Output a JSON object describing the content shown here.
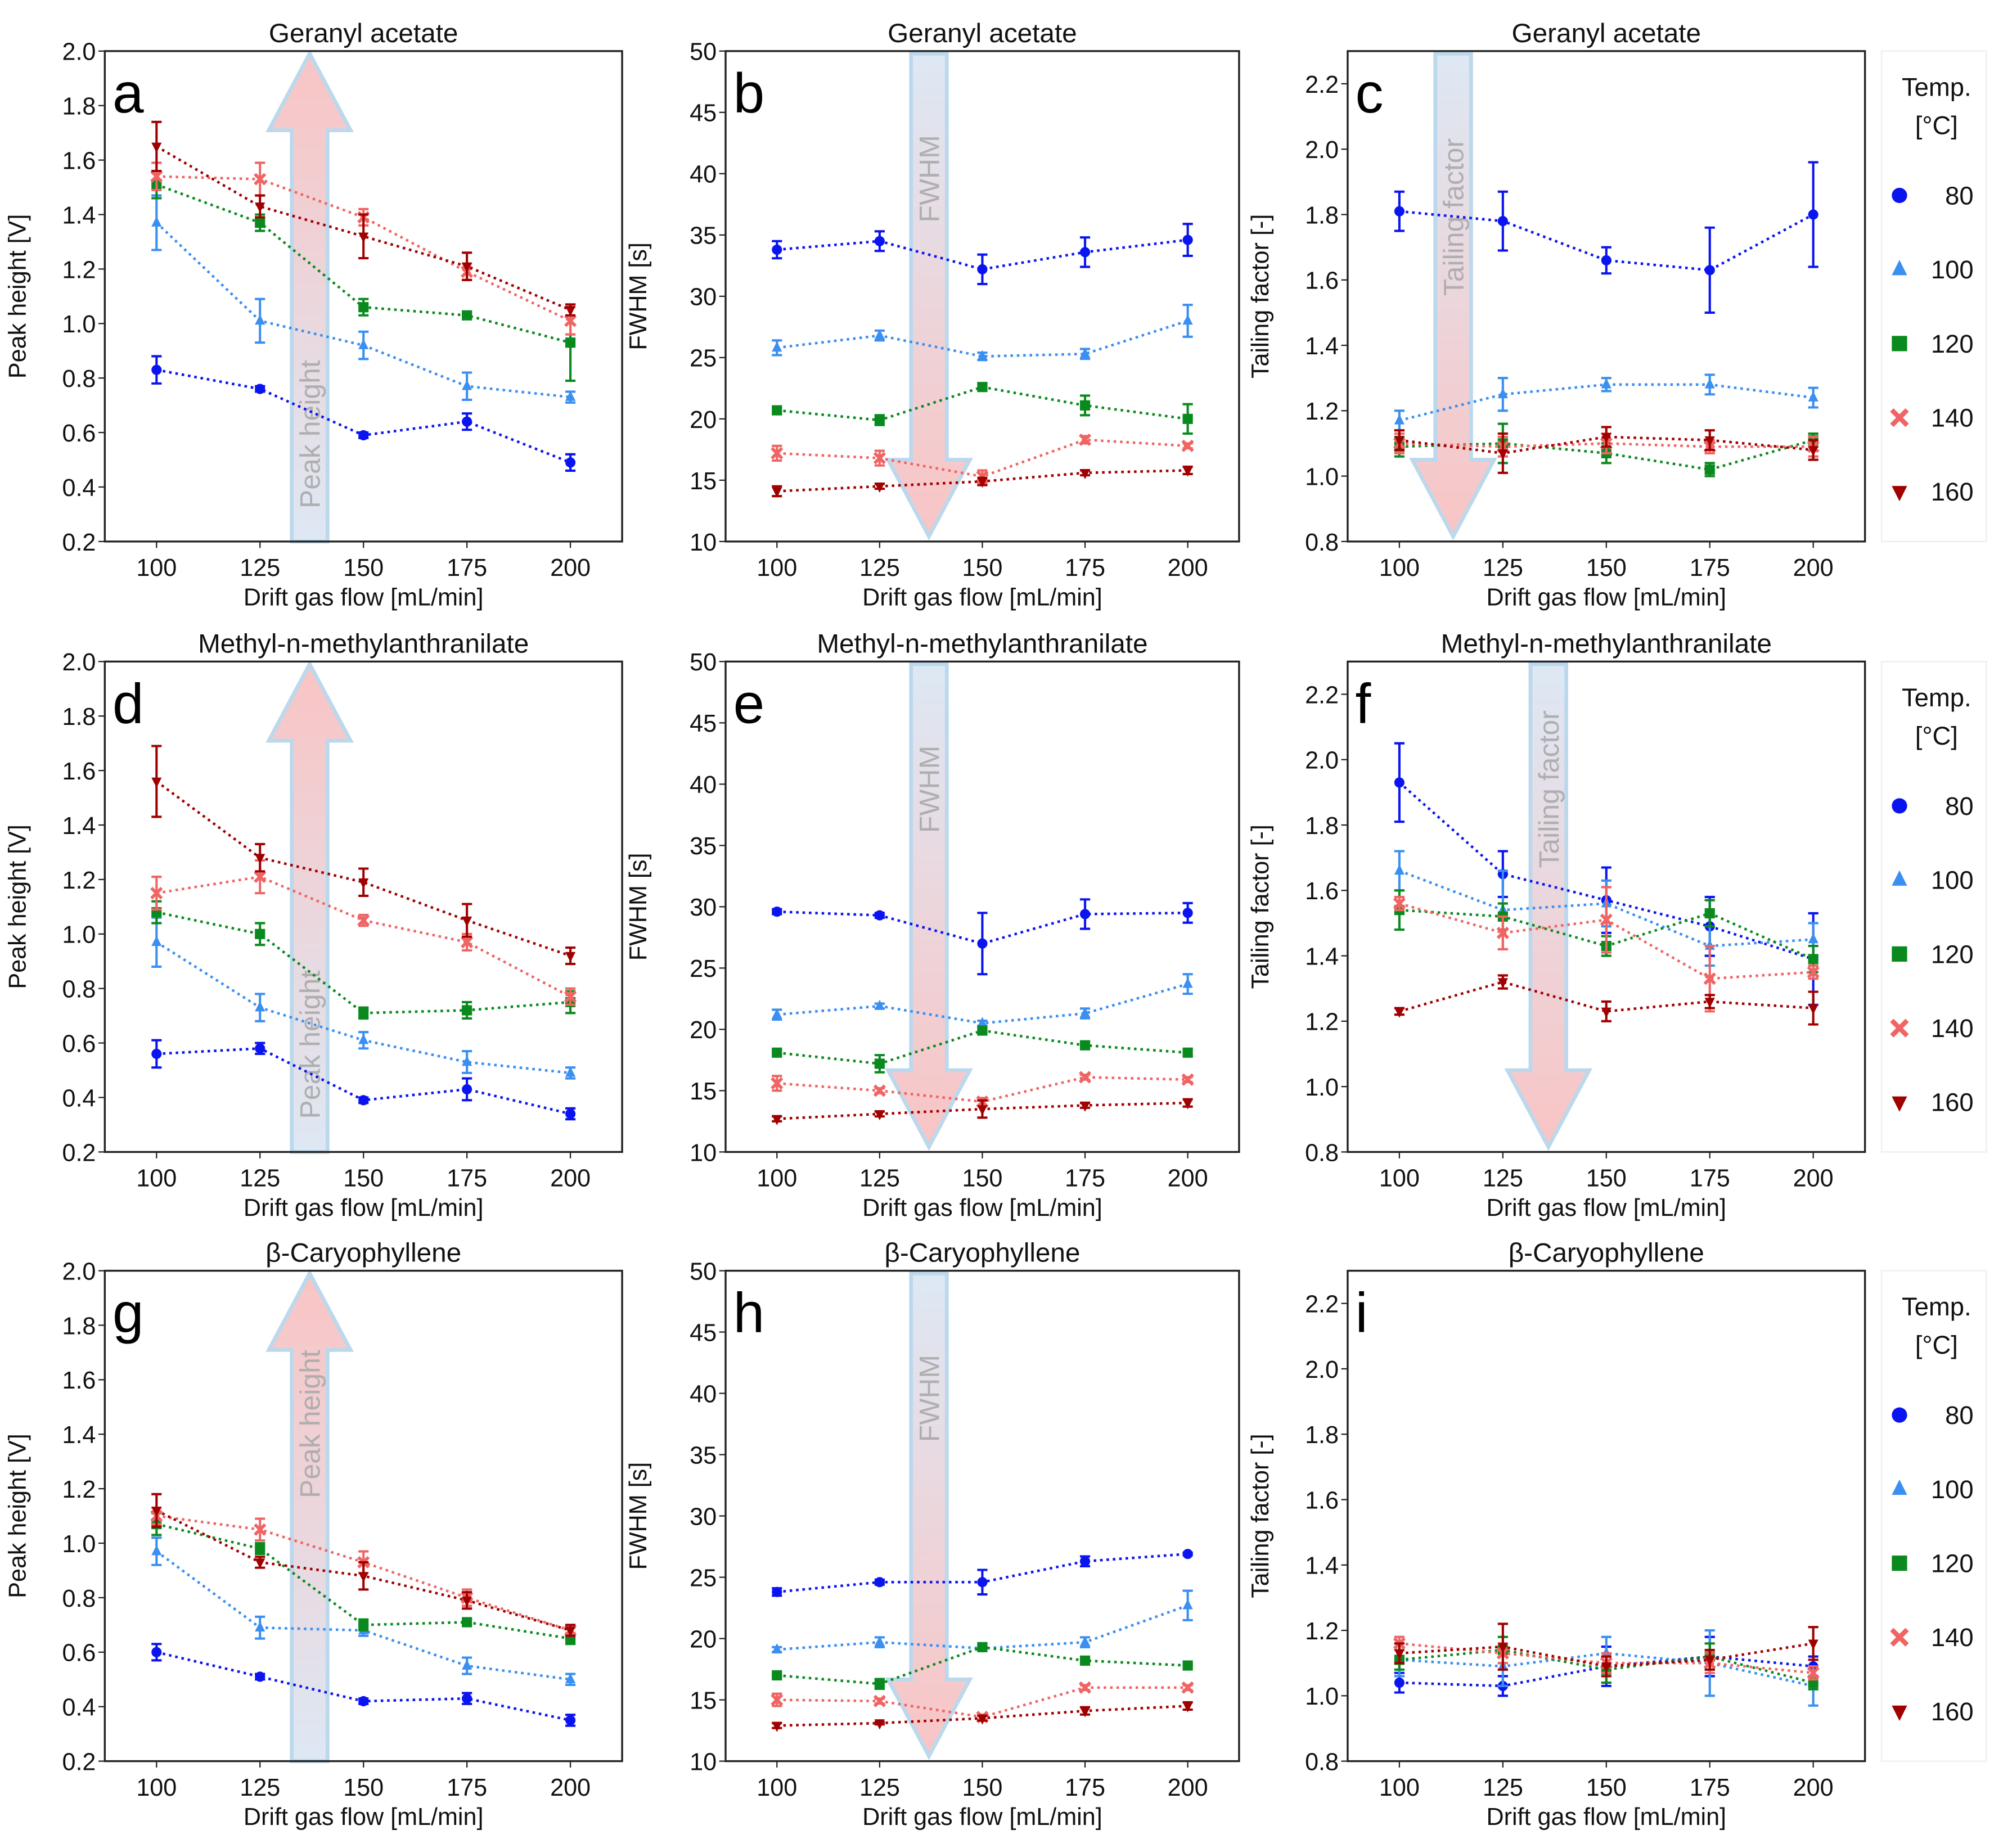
{
  "legend": {
    "title_line1": "Temp.",
    "title_line2": "[°C]",
    "entries": [
      {
        "label": "80",
        "color": "#0a14f0",
        "marker": "circle"
      },
      {
        "label": "100",
        "color": "#3a8ff0",
        "marker": "triangle-up"
      },
      {
        "label": "120",
        "color": "#0a8a1e",
        "marker": "square"
      },
      {
        "label": "140",
        "color": "#f06464",
        "marker": "x"
      },
      {
        "label": "160",
        "color": "#a00000",
        "marker": "triangle-down"
      }
    ]
  },
  "chart_data": [
    {
      "type": "line",
      "panel": "a",
      "title": "Geranyl acetate",
      "xlabel": "Drift gas flow [mL/min]",
      "ylabel": "Peak height [V]",
      "annotation": "Peak height",
      "arrow": "up",
      "x": [
        100,
        125,
        150,
        175,
        200
      ],
      "xlim": [
        87.5,
        212.5
      ],
      "ylim": [
        0.2,
        2.0
      ],
      "yticks": [
        0.2,
        0.4,
        0.6,
        0.8,
        1.0,
        1.2,
        1.4,
        1.6,
        1.8,
        2.0
      ],
      "tick_decimals": 1,
      "series": [
        {
          "name": "80",
          "values": [
            0.83,
            0.76,
            0.59,
            0.64,
            0.49
          ],
          "errors": [
            0.05,
            0.01,
            0.01,
            0.03,
            0.03
          ]
        },
        {
          "name": "100",
          "values": [
            1.37,
            1.01,
            0.92,
            0.77,
            0.73
          ],
          "errors": [
            0.1,
            0.08,
            0.05,
            0.05,
            0.02
          ]
        },
        {
          "name": "120",
          "values": [
            1.51,
            1.37,
            1.06,
            1.03,
            0.93
          ],
          "errors": [
            0.05,
            0.03,
            0.03,
            0.01,
            0.14
          ]
        },
        {
          "name": "140",
          "values": [
            1.54,
            1.53,
            1.39,
            1.19,
            1.01
          ],
          "errors": [
            0.05,
            0.06,
            0.03,
            0.03,
            0.05
          ]
        },
        {
          "name": "160",
          "values": [
            1.65,
            1.43,
            1.32,
            1.21,
            1.05
          ],
          "errors": [
            0.09,
            0.04,
            0.08,
            0.05,
            0.02
          ]
        }
      ]
    },
    {
      "type": "line",
      "panel": "b",
      "title": "Geranyl acetate",
      "xlabel": "Drift gas flow [mL/min]",
      "ylabel": "FWHM [s]",
      "annotation": "FWHM",
      "arrow": "down",
      "x": [
        100,
        125,
        150,
        175,
        200
      ],
      "xlim": [
        87.5,
        212.5
      ],
      "ylim": [
        10,
        50
      ],
      "yticks": [
        10,
        15,
        20,
        25,
        30,
        35,
        40,
        45,
        50
      ],
      "tick_decimals": 0,
      "series": [
        {
          "name": "80",
          "values": [
            33.8,
            34.5,
            32.2,
            33.6,
            34.6
          ],
          "errors": [
            0.7,
            0.8,
            1.2,
            1.2,
            1.3
          ]
        },
        {
          "name": "100",
          "values": [
            25.8,
            26.8,
            25.1,
            25.3,
            28.0
          ],
          "errors": [
            0.6,
            0.4,
            0.3,
            0.4,
            1.3
          ]
        },
        {
          "name": "120",
          "values": [
            20.7,
            19.9,
            22.6,
            21.1,
            20.0
          ],
          "errors": [
            0.3,
            0.4,
            0.3,
            0.8,
            1.2
          ]
        },
        {
          "name": "140",
          "values": [
            17.2,
            16.8,
            15.3,
            18.3,
            17.8
          ],
          "errors": [
            0.6,
            0.6,
            0.5,
            0.3,
            0.2
          ]
        },
        {
          "name": "160",
          "values": [
            14.1,
            14.5,
            14.9,
            15.6,
            15.8
          ],
          "errors": [
            0.4,
            0.2,
            0.3,
            0.2,
            0.3
          ]
        }
      ]
    },
    {
      "type": "line",
      "panel": "c",
      "title": "Geranyl acetate",
      "xlabel": "Drift gas flow [mL/min]",
      "ylabel": "Tailing factor  [-]",
      "annotation": "Tailing factor",
      "arrow": "down",
      "x": [
        100,
        125,
        150,
        175,
        200
      ],
      "xlim": [
        87.5,
        212.5
      ],
      "ylim": [
        0.8,
        2.3
      ],
      "yticks": [
        0.8,
        1.0,
        1.2,
        1.4,
        1.6,
        1.8,
        2.0,
        2.2
      ],
      "tick_decimals": 1,
      "series": [
        {
          "name": "80",
          "values": [
            1.81,
            1.78,
            1.66,
            1.63,
            1.8
          ],
          "errors": [
            0.06,
            0.09,
            0.04,
            0.13,
            0.16
          ]
        },
        {
          "name": "100",
          "values": [
            1.17,
            1.25,
            1.28,
            1.28,
            1.24
          ],
          "errors": [
            0.03,
            0.05,
            0.02,
            0.03,
            0.03
          ]
        },
        {
          "name": "120",
          "values": [
            1.09,
            1.1,
            1.07,
            1.02,
            1.11
          ],
          "errors": [
            0.03,
            0.06,
            0.03,
            0.02,
            0.02
          ]
        },
        {
          "name": "140",
          "values": [
            1.1,
            1.09,
            1.1,
            1.09,
            1.09
          ],
          "errors": [
            0.03,
            0.03,
            0.03,
            0.02,
            0.03
          ]
        },
        {
          "name": "160",
          "values": [
            1.11,
            1.07,
            1.12,
            1.11,
            1.08
          ],
          "errors": [
            0.03,
            0.06,
            0.03,
            0.03,
            0.03
          ]
        }
      ]
    },
    {
      "type": "line",
      "panel": "d",
      "title": "Methyl-n-methylanthranilate",
      "xlabel": "Drift gas flow [mL/min]",
      "ylabel": "Peak height [V]",
      "annotation": "Peak height",
      "arrow": "up",
      "x": [
        100,
        125,
        150,
        175,
        200
      ],
      "xlim": [
        87.5,
        212.5
      ],
      "ylim": [
        0.2,
        2.0
      ],
      "yticks": [
        0.2,
        0.4,
        0.6,
        0.8,
        1.0,
        1.2,
        1.4,
        1.6,
        1.8,
        2.0
      ],
      "tick_decimals": 1,
      "series": [
        {
          "name": "80",
          "values": [
            0.56,
            0.58,
            0.39,
            0.43,
            0.34
          ],
          "errors": [
            0.05,
            0.02,
            0.01,
            0.04,
            0.02
          ]
        },
        {
          "name": "100",
          "values": [
            0.97,
            0.73,
            0.61,
            0.53,
            0.49
          ],
          "errors": [
            0.09,
            0.05,
            0.03,
            0.04,
            0.02
          ]
        },
        {
          "name": "120",
          "values": [
            1.08,
            1.0,
            0.71,
            0.72,
            0.75
          ],
          "errors": [
            0.04,
            0.04,
            0.02,
            0.03,
            0.04
          ]
        },
        {
          "name": "140",
          "values": [
            1.15,
            1.21,
            1.05,
            0.97,
            0.77
          ],
          "errors": [
            0.06,
            0.06,
            0.02,
            0.03,
            0.03
          ]
        },
        {
          "name": "160",
          "values": [
            1.56,
            1.28,
            1.19,
            1.05,
            0.92
          ],
          "errors": [
            0.13,
            0.05,
            0.05,
            0.06,
            0.03
          ]
        }
      ]
    },
    {
      "type": "line",
      "panel": "e",
      "title": "Methyl-n-methylanthranilate",
      "xlabel": "Drift gas flow [mL/min]",
      "ylabel": "FWHM [s]",
      "annotation": "FWHM",
      "arrow": "down",
      "x": [
        100,
        125,
        150,
        175,
        200
      ],
      "xlim": [
        87.5,
        212.5
      ],
      "ylim": [
        10,
        50
      ],
      "yticks": [
        10,
        15,
        20,
        25,
        30,
        35,
        40,
        45,
        50
      ],
      "tick_decimals": 0,
      "series": [
        {
          "name": "80",
          "values": [
            29.6,
            29.3,
            27.0,
            29.4,
            29.5
          ],
          "errors": [
            0.2,
            0.2,
            2.5,
            1.2,
            0.8
          ]
        },
        {
          "name": "100",
          "values": [
            21.2,
            21.9,
            20.5,
            21.3,
            23.7
          ],
          "errors": [
            0.4,
            0.2,
            0.2,
            0.4,
            0.8
          ]
        },
        {
          "name": "120",
          "values": [
            18.1,
            17.2,
            19.9,
            18.7,
            18.1
          ],
          "errors": [
            0.2,
            0.7,
            0.3,
            0.3,
            0.3
          ]
        },
        {
          "name": "140",
          "values": [
            15.6,
            15.0,
            14.1,
            16.1,
            15.9
          ],
          "errors": [
            0.6,
            0.2,
            0.3,
            0.2,
            0.2
          ]
        },
        {
          "name": "160",
          "values": [
            12.7,
            13.1,
            13.5,
            13.8,
            14.0
          ],
          "errors": [
            0.2,
            0.2,
            0.7,
            0.2,
            0.3
          ]
        }
      ]
    },
    {
      "type": "line",
      "panel": "f",
      "title": "Methyl-n-methylanthranilate",
      "xlabel": "Drift gas flow [mL/min]",
      "ylabel": "Tailing factor  [-]",
      "annotation": "Tailing factor",
      "arrow": "down",
      "x": [
        100,
        125,
        150,
        175,
        200
      ],
      "xlim": [
        87.5,
        212.5
      ],
      "ylim": [
        0.8,
        2.3
      ],
      "yticks": [
        0.8,
        1.0,
        1.2,
        1.4,
        1.6,
        1.8,
        2.0,
        2.2
      ],
      "tick_decimals": 1,
      "series": [
        {
          "name": "80",
          "values": [
            1.93,
            1.65,
            1.57,
            1.49,
            1.39
          ],
          "errors": [
            0.12,
            0.07,
            0.1,
            0.09,
            0.14
          ]
        },
        {
          "name": "100",
          "values": [
            1.66,
            1.54,
            1.56,
            1.43,
            1.45
          ],
          "errors": [
            0.06,
            0.12,
            0.07,
            0.06,
            0.05
          ]
        },
        {
          "name": "120",
          "values": [
            1.54,
            1.52,
            1.43,
            1.53,
            1.39
          ],
          "errors": [
            0.06,
            0.04,
            0.03,
            0.04,
            0.04
          ]
        },
        {
          "name": "140",
          "values": [
            1.56,
            1.47,
            1.51,
            1.33,
            1.35
          ],
          "errors": [
            0.02,
            0.05,
            0.1,
            0.1,
            0.02
          ]
        },
        {
          "name": "160",
          "values": [
            1.23,
            1.32,
            1.23,
            1.26,
            1.24
          ],
          "errors": [
            0.01,
            0.02,
            0.03,
            0.02,
            0.05
          ]
        }
      ]
    },
    {
      "type": "line",
      "panel": "g",
      "title": "β-Caryophyllene",
      "xlabel": "Drift gas flow [mL/min]",
      "ylabel": "Peak height [V]",
      "annotation": "Peak height",
      "arrow": "up",
      "x": [
        100,
        125,
        150,
        175,
        200
      ],
      "xlim": [
        87.5,
        212.5
      ],
      "ylim": [
        0.2,
        2.0
      ],
      "yticks": [
        0.2,
        0.4,
        0.6,
        0.8,
        1.0,
        1.2,
        1.4,
        1.6,
        1.8,
        2.0
      ],
      "tick_decimals": 1,
      "series": [
        {
          "name": "80",
          "values": [
            0.6,
            0.51,
            0.42,
            0.43,
            0.35
          ],
          "errors": [
            0.03,
            0.01,
            0.01,
            0.02,
            0.02
          ]
        },
        {
          "name": "100",
          "values": [
            0.97,
            0.69,
            0.68,
            0.55,
            0.5
          ],
          "errors": [
            0.05,
            0.04,
            0.02,
            0.03,
            0.02
          ]
        },
        {
          "name": "120",
          "values": [
            1.07,
            0.98,
            0.7,
            0.71,
            0.65
          ],
          "errors": [
            0.04,
            0.02,
            0.02,
            0.01,
            0.02
          ]
        },
        {
          "name": "140",
          "values": [
            1.1,
            1.05,
            0.93,
            0.8,
            0.68
          ],
          "errors": [
            0.03,
            0.04,
            0.04,
            0.03,
            0.01
          ]
        },
        {
          "name": "160",
          "values": [
            1.12,
            0.93,
            0.88,
            0.79,
            0.68
          ],
          "errors": [
            0.06,
            0.02,
            0.05,
            0.03,
            0.02
          ]
        }
      ]
    },
    {
      "type": "line",
      "panel": "h",
      "title": "β-Caryophyllene",
      "xlabel": "Drift gas flow [mL/min]",
      "ylabel": "FWHM [s]",
      "annotation": "FWHM",
      "arrow": "down",
      "x": [
        100,
        125,
        150,
        175,
        200
      ],
      "xlim": [
        87.5,
        212.5
      ],
      "ylim": [
        10,
        50
      ],
      "yticks": [
        10,
        15,
        20,
        25,
        30,
        35,
        40,
        45,
        50
      ],
      "tick_decimals": 0,
      "series": [
        {
          "name": "80",
          "values": [
            23.8,
            24.6,
            24.6,
            26.3,
            26.9
          ],
          "errors": [
            0.3,
            0.2,
            1.0,
            0.4,
            0.1
          ]
        },
        {
          "name": "100",
          "values": [
            19.1,
            19.7,
            19.2,
            19.7,
            22.7
          ],
          "errors": [
            0.2,
            0.4,
            0.2,
            0.4,
            1.2
          ]
        },
        {
          "name": "120",
          "values": [
            17.0,
            16.3,
            19.3,
            18.2,
            17.8
          ],
          "errors": [
            0.1,
            0.4,
            0.2,
            0.2,
            0.1
          ]
        },
        {
          "name": "140",
          "values": [
            15.0,
            14.9,
            13.6,
            16.0,
            16.0
          ],
          "errors": [
            0.5,
            0.2,
            0.2,
            0.2,
            0.2
          ]
        },
        {
          "name": "160",
          "values": [
            12.9,
            13.1,
            13.5,
            14.1,
            14.5
          ],
          "errors": [
            0.2,
            0.1,
            0.2,
            0.3,
            0.3
          ]
        }
      ]
    },
    {
      "type": "line",
      "panel": "i",
      "title": "β-Caryophyllene",
      "xlabel": "Drift gas flow [mL/min]",
      "ylabel": "Tailing factor  [-]",
      "annotation": "",
      "arrow": "none",
      "x": [
        100,
        125,
        150,
        175,
        200
      ],
      "xlim": [
        87.5,
        212.5
      ],
      "ylim": [
        0.8,
        2.3
      ],
      "yticks": [
        0.8,
        1.0,
        1.2,
        1.4,
        1.6,
        1.8,
        2.0,
        2.2
      ],
      "tick_decimals": 1,
      "series": [
        {
          "name": "80",
          "values": [
            1.04,
            1.03,
            1.09,
            1.12,
            1.09
          ],
          "errors": [
            0.03,
            0.03,
            0.06,
            0.06,
            0.03
          ]
        },
        {
          "name": "100",
          "values": [
            1.11,
            1.09,
            1.13,
            1.1,
            1.03
          ],
          "errors": [
            0.05,
            0.06,
            0.05,
            0.1,
            0.06
          ]
        },
        {
          "name": "120",
          "values": [
            1.11,
            1.14,
            1.08,
            1.12,
            1.04
          ],
          "errors": [
            0.03,
            0.04,
            0.04,
            0.04,
            0.02
          ]
        },
        {
          "name": "140",
          "values": [
            1.16,
            1.13,
            1.1,
            1.1,
            1.07
          ],
          "errors": [
            0.02,
            0.03,
            0.03,
            0.03,
            0.02
          ]
        },
        {
          "name": "160",
          "values": [
            1.13,
            1.15,
            1.09,
            1.11,
            1.16
          ],
          "errors": [
            0.03,
            0.07,
            0.03,
            0.03,
            0.05
          ]
        }
      ]
    }
  ]
}
